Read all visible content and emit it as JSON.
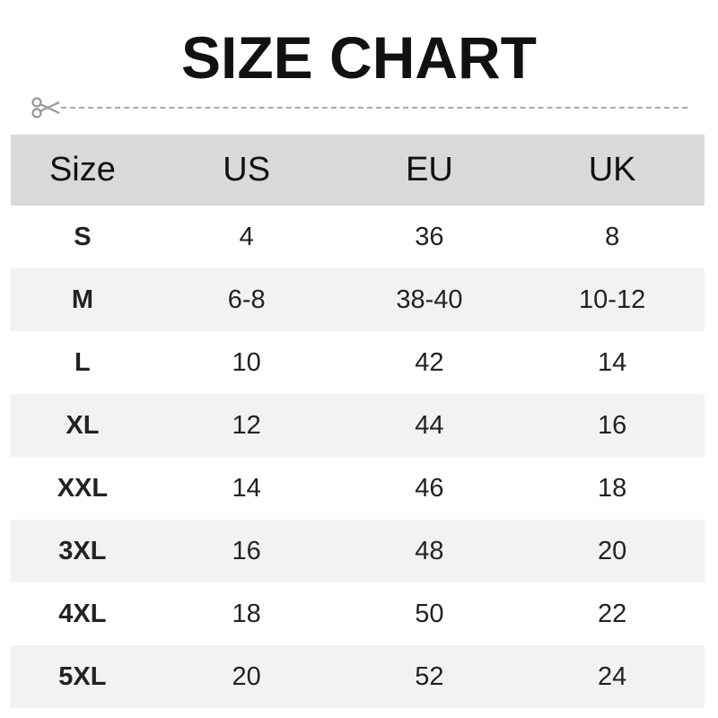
{
  "title": "SIZE CHART",
  "icons": {
    "cut": "scissors-icon"
  },
  "colors": {
    "header_bg": "#d9d9d9",
    "alt_row_bg": "#f2f2f2"
  },
  "table": {
    "headers": [
      "Size",
      "US",
      "EU",
      "UK"
    ],
    "rows": [
      [
        "S",
        "4",
        "36",
        "8"
      ],
      [
        "M",
        "6-8",
        "38-40",
        "10-12"
      ],
      [
        "L",
        "10",
        "42",
        "14"
      ],
      [
        "XL",
        "12",
        "44",
        "16"
      ],
      [
        "XXL",
        "14",
        "46",
        "18"
      ],
      [
        "3XL",
        "16",
        "48",
        "20"
      ],
      [
        "4XL",
        "18",
        "50",
        "22"
      ],
      [
        "5XL",
        "20",
        "52",
        "24"
      ]
    ]
  }
}
